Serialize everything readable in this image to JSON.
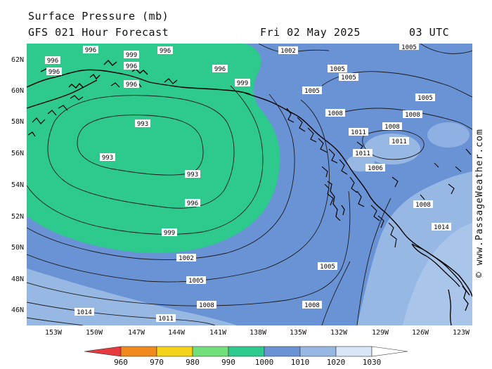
{
  "header": {
    "title": "Surface Pressure (mb)",
    "subtitle": "GFS 021 Hour Forecast",
    "date": "Fri 02 May 2025",
    "time": "03 UTC"
  },
  "credit": "© www.PassageWeather.com",
  "axes": {
    "lat_labels": [
      "62N",
      "60N",
      "58N",
      "56N",
      "54N",
      "52N",
      "50N",
      "48N",
      "46N"
    ],
    "lon_labels": [
      "153W",
      "150W",
      "147W",
      "144W",
      "141W",
      "138W",
      "135W",
      "132W",
      "129W",
      "126W",
      "123W"
    ]
  },
  "legend": {
    "labels": [
      "960",
      "970",
      "980",
      "990",
      "1000",
      "1010",
      "1020",
      "1030"
    ],
    "colors": [
      "#e8393f",
      "#f08a1c",
      "#f2d31a",
      "#72e07a",
      "#2ec98c",
      "#6a93d6",
      "#98b8e4",
      "#d8e6f8",
      "#ffffff"
    ]
  },
  "colors": {
    "low_990_1000": "#2ec98c",
    "band_1000_1010": "#6a93d6",
    "band_1010_1020": "#98b8e4",
    "land_alaska": "#2ec98c",
    "coastline": "#000000",
    "isobar": "#1a1a1a"
  },
  "isobar_labels": [
    {
      "id": "l993a",
      "text": "993"
    },
    {
      "id": "l993b",
      "text": "993"
    },
    {
      "id": "l993c",
      "text": "993"
    },
    {
      "id": "l996a",
      "text": "996"
    },
    {
      "id": "l996b",
      "text": "996"
    },
    {
      "id": "l999a",
      "text": "999"
    },
    {
      "id": "l1002a",
      "text": "1002"
    },
    {
      "id": "l1005a",
      "text": "1005"
    },
    {
      "id": "l1005b",
      "text": "1005"
    },
    {
      "id": "l1008a",
      "text": "1008"
    },
    {
      "id": "l1008b",
      "text": "1008"
    },
    {
      "id": "l1011a",
      "text": "1011"
    },
    {
      "id": "l1014a",
      "text": "1014"
    },
    {
      "id": "l1002n",
      "text": "1002"
    },
    {
      "id": "l1005n1",
      "text": "1005"
    },
    {
      "id": "l1005n2",
      "text": "1005"
    },
    {
      "id": "l1005n3",
      "text": "1005"
    },
    {
      "id": "l1008n1",
      "text": "1008"
    },
    {
      "id": "l1008n2",
      "text": "1008"
    },
    {
      "id": "l1011n1",
      "text": "1011"
    },
    {
      "id": "l1011n2",
      "text": "1011"
    },
    {
      "id": "l1011n3",
      "text": "1011"
    },
    {
      "id": "l1014n1",
      "text": "1014"
    },
    {
      "id": "l996n1",
      "text": "996"
    },
    {
      "id": "l996n2",
      "text": "996"
    },
    {
      "id": "l999n1",
      "text": "999"
    },
    {
      "id": "l996n3",
      "text": "996"
    },
    {
      "id": "l996n4",
      "text": "996"
    },
    {
      "id": "l999n2",
      "text": "999"
    },
    {
      "id": "l996n5",
      "text": "996"
    },
    {
      "id": "l996n6",
      "text": "996"
    },
    {
      "id": "l1005n4",
      "text": "1005"
    },
    {
      "id": "l1008n3",
      "text": "1008"
    },
    {
      "id": "l1008n4",
      "text": "1008"
    },
    {
      "id": "l1006n1",
      "text": "1006"
    },
    {
      "id": "l1005n5",
      "text": "1005"
    }
  ]
}
